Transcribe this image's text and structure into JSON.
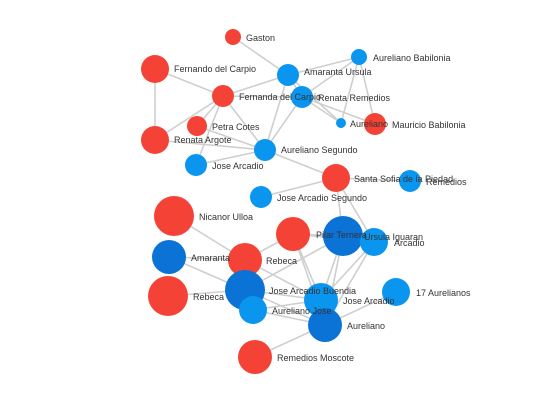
{
  "colors": {
    "female": "#f44336",
    "male": "#0a96ef",
    "male_dark": "#0b73d6",
    "edge": "#cfcfcf",
    "label": "#333333"
  },
  "nodes": [
    {
      "id": "gaston",
      "label": "Gaston",
      "color": "female"
    },
    {
      "id": "aureliano_babilonia",
      "label": "Aureliano Babilonia",
      "color": "male"
    },
    {
      "id": "fernando_del_carpio",
      "label": "Fernando del Carpio",
      "color": "female"
    },
    {
      "id": "amaranta_ursula",
      "label": "Amaranta Ursula",
      "color": "male"
    },
    {
      "id": "fernanda_del_carpio",
      "label": "Fernanda del Carpio",
      "color": "female"
    },
    {
      "id": "renata_remedios",
      "label": "Renata Remedios",
      "color": "male"
    },
    {
      "id": "aureliano_small",
      "label": "Aureliano",
      "color": "male"
    },
    {
      "id": "mauricio_babilonia",
      "label": "Mauricio Babilonia",
      "color": "female"
    },
    {
      "id": "petra_cotes",
      "label": "Petra Cotes",
      "color": "female"
    },
    {
      "id": "renata_argote",
      "label": "Renata Argote",
      "color": "female"
    },
    {
      "id": "aureliano_segundo",
      "label": "Aureliano Segundo",
      "color": "male"
    },
    {
      "id": "jose_arcadio",
      "label": "Jose Arcadio",
      "color": "male"
    },
    {
      "id": "santa_sofia",
      "label": "Santa Sofia de la Piedad",
      "color": "female"
    },
    {
      "id": "remedios",
      "label": "Remedios",
      "color": "male"
    },
    {
      "id": "jose_arcadio_segundo",
      "label": "Jose Arcadio Segundo",
      "color": "male"
    },
    {
      "id": "nicanor_ulloa",
      "label": "Nicanor Ulloa",
      "color": "female"
    },
    {
      "id": "pilar_ternera",
      "label": "Pilar Ternera",
      "color": "female"
    },
    {
      "id": "ursula_iguaran",
      "label": "Ursula Iguaran",
      "color": "male_dark"
    },
    {
      "id": "arcadio",
      "label": "Arcadio",
      "color": "male"
    },
    {
      "id": "amaranta",
      "label": "Amaranta",
      "color": "male_dark"
    },
    {
      "id": "rebeca_1",
      "label": "Rebeca",
      "color": "female"
    },
    {
      "id": "rebeca_2",
      "label": "Rebeca",
      "color": "female"
    },
    {
      "id": "jose_arcadio_buendia",
      "label": "Jose Arcadio Buendia",
      "color": "male_dark"
    },
    {
      "id": "jose_arcadio_2",
      "label": "Jose Arcadio",
      "color": "male"
    },
    {
      "id": "aureliano_jose",
      "label": "Aureliano Jose",
      "color": "male"
    },
    {
      "id": "17_aurelianos",
      "label": "17 Aurelianos",
      "color": "male"
    },
    {
      "id": "aureliano",
      "label": "Aureliano",
      "color": "male_dark"
    },
    {
      "id": "remedios_moscote",
      "label": "Remedios Moscote",
      "color": "female"
    }
  ],
  "edges": [
    [
      "gaston",
      "amaranta_ursula"
    ],
    [
      "aureliano_babilonia",
      "amaranta_ursula"
    ],
    [
      "aureliano_babilonia",
      "renata_remedios"
    ],
    [
      "aureliano_babilonia",
      "aureliano_small"
    ],
    [
      "aureliano_babilonia",
      "mauricio_babilonia"
    ],
    [
      "fernando_del_carpio",
      "fernanda_del_carpio"
    ],
    [
      "fernando_del_carpio",
      "renata_argote"
    ],
    [
      "fernanda_del_carpio",
      "renata_argote"
    ],
    [
      "fernanda_del_carpio",
      "amaranta_ursula"
    ],
    [
      "fernanda_del_carpio",
      "renata_remedios"
    ],
    [
      "fernanda_del_carpio",
      "aureliano_segundo"
    ],
    [
      "fernanda_del_carpio",
      "petra_cotes"
    ],
    [
      "fernanda_del_carpio",
      "jose_arcadio"
    ],
    [
      "amaranta_ursula",
      "renata_remedios"
    ],
    [
      "amaranta_ursula",
      "aureliano_segundo"
    ],
    [
      "amaranta_ursula",
      "aureliano_small"
    ],
    [
      "renata_remedios",
      "mauricio_babilonia"
    ],
    [
      "renata_remedios",
      "aureliano_segundo"
    ],
    [
      "renata_remedios",
      "aureliano_small"
    ],
    [
      "petra_cotes",
      "aureliano_segundo"
    ],
    [
      "renata_argote",
      "aureliano_segundo"
    ],
    [
      "jose_arcadio",
      "aureliano_segundo"
    ],
    [
      "aureliano_segundo",
      "santa_sofia"
    ],
    [
      "santa_sofia",
      "remedios"
    ],
    [
      "santa_sofia",
      "jose_arcadio_segundo"
    ],
    [
      "santa_sofia",
      "ursula_iguaran"
    ],
    [
      "santa_sofia",
      "arcadio"
    ],
    [
      "nicanor_ulloa",
      "rebeca_1"
    ],
    [
      "amaranta",
      "rebeca_1"
    ],
    [
      "amaranta",
      "jose_arcadio_buendia"
    ],
    [
      "rebeca_2",
      "jose_arcadio_buendia"
    ],
    [
      "rebeca_1",
      "jose_arcadio_buendia"
    ],
    [
      "rebeca_1",
      "pilar_ternera"
    ],
    [
      "rebeca_1",
      "aureliano_jose"
    ],
    [
      "rebeca_1",
      "jose_arcadio_2"
    ],
    [
      "pilar_ternera",
      "ursula_iguaran"
    ],
    [
      "pilar_ternera",
      "jose_arcadio_2"
    ],
    [
      "pilar_ternera",
      "aureliano"
    ],
    [
      "pilar_ternera",
      "arcadio"
    ],
    [
      "ursula_iguaran",
      "arcadio"
    ],
    [
      "ursula_iguaran",
      "jose_arcadio_buendia"
    ],
    [
      "ursula_iguaran",
      "jose_arcadio_2"
    ],
    [
      "ursula_iguaran",
      "aureliano"
    ],
    [
      "arcadio",
      "jose_arcadio_2"
    ],
    [
      "arcadio",
      "aureliano"
    ],
    [
      "jose_arcadio_buendia",
      "aureliano_jose"
    ],
    [
      "jose_arcadio_buendia",
      "jose_arcadio_2"
    ],
    [
      "jose_arcadio_buendia",
      "aureliano"
    ],
    [
      "jose_arcadio_2",
      "aureliano"
    ],
    [
      "jose_arcadio_2",
      "aureliano_jose"
    ],
    [
      "aureliano",
      "17_aurelianos"
    ],
    [
      "aureliano",
      "remedios_moscote"
    ],
    [
      "aureliano",
      "aureliano_jose"
    ]
  ]
}
